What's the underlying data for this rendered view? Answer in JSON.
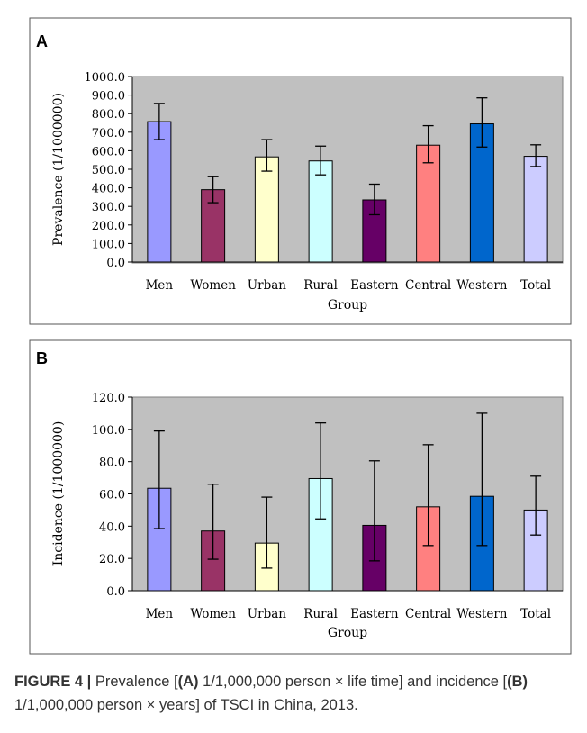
{
  "caption": {
    "figure_label": "FIGURE 4 |",
    "t1": " Prevalence [",
    "a": "(A)",
    "t2": " 1/1,000,000 person × life time] and incidence [",
    "b": "(B)",
    "t3": " 1/1,000,000 person × years] of TSCI in China, 2013."
  },
  "colors": [
    "#9999ff",
    "#993366",
    "#ffffcc",
    "#ccffff",
    "#660066",
    "#ff8080",
    "#0066cc",
    "#ccccff"
  ],
  "chart_data": [
    {
      "panel": "A",
      "type": "bar",
      "categories": [
        "Men",
        "Women",
        "Urban",
        "Rural",
        "Eastern",
        "Central",
        "Western",
        "Total"
      ],
      "values": [
        757,
        390,
        567,
        545,
        335,
        630,
        745,
        570
      ],
      "error_low": [
        660,
        320,
        490,
        470,
        255,
        535,
        620,
        515
      ],
      "error_high": [
        855,
        460,
        660,
        625,
        420,
        735,
        885,
        632
      ],
      "ylim": [
        0,
        1000
      ],
      "yticks": [
        "0.0",
        "100.0",
        "200.0",
        "300.0",
        "400.0",
        "500.0",
        "600.0",
        "700.0",
        "800.0",
        "900.0",
        "1000.0"
      ],
      "ylabel": "Prevalence (1/1000000)",
      "xlabel": "Group",
      "grid": false
    },
    {
      "panel": "B",
      "type": "bar",
      "categories": [
        "Men",
        "Women",
        "Urban",
        "Rural",
        "Eastern",
        "Central",
        "Western",
        "Total"
      ],
      "values": [
        63.5,
        37,
        29.5,
        69.5,
        40.5,
        52,
        58.5,
        50
      ],
      "error_low": [
        38.5,
        19.5,
        14,
        44.5,
        18.5,
        28,
        28,
        34.5
      ],
      "error_high": [
        99,
        66,
        58,
        104,
        80.5,
        90.5,
        110,
        71
      ],
      "ylim": [
        0,
        120
      ],
      "yticks": [
        "0.0",
        "20.0",
        "40.0",
        "60.0",
        "80.0",
        "100.0",
        "120.0"
      ],
      "ylabel": "Incidence (1/1000000)",
      "xlabel": "Group",
      "grid": false
    }
  ]
}
